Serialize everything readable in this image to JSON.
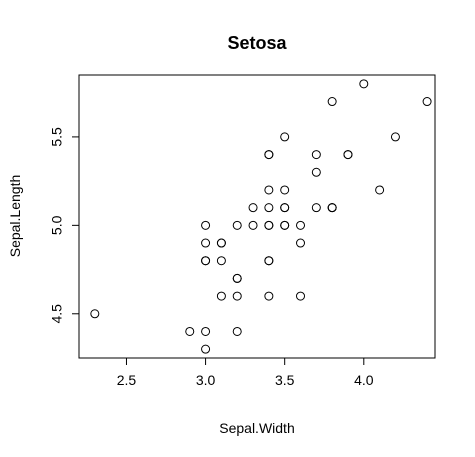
{
  "chart_data": {
    "type": "scatter",
    "title": "Setosa",
    "xlabel": "Sepal.Width",
    "ylabel": "Sepal.Length",
    "xlim": [
      2.2,
      4.45
    ],
    "ylim": [
      4.25,
      5.85
    ],
    "xticks": [
      2.5,
      3.0,
      3.5,
      4.0
    ],
    "xtick_labels": [
      "2.5",
      "3.0",
      "3.5",
      "4.0"
    ],
    "yticks": [
      4.5,
      5.0,
      5.5
    ],
    "ytick_labels": [
      "4.5",
      "5.0",
      "5.5"
    ],
    "grid": false,
    "legend": "none",
    "points": [
      {
        "x": 3.5,
        "y": 5.1
      },
      {
        "x": 3.0,
        "y": 4.9
      },
      {
        "x": 3.2,
        "y": 4.7
      },
      {
        "x": 3.1,
        "y": 4.6
      },
      {
        "x": 3.6,
        "y": 5.0
      },
      {
        "x": 3.9,
        "y": 5.4
      },
      {
        "x": 3.4,
        "y": 4.6
      },
      {
        "x": 3.4,
        "y": 5.0
      },
      {
        "x": 2.9,
        "y": 4.4
      },
      {
        "x": 3.1,
        "y": 4.9
      },
      {
        "x": 3.7,
        "y": 5.4
      },
      {
        "x": 3.4,
        "y": 4.8
      },
      {
        "x": 3.0,
        "y": 4.8
      },
      {
        "x": 3.0,
        "y": 4.3
      },
      {
        "x": 4.0,
        "y": 5.8
      },
      {
        "x": 4.4,
        "y": 5.7
      },
      {
        "x": 3.9,
        "y": 5.4
      },
      {
        "x": 3.5,
        "y": 5.1
      },
      {
        "x": 3.8,
        "y": 5.7
      },
      {
        "x": 3.8,
        "y": 5.1
      },
      {
        "x": 3.4,
        "y": 5.4
      },
      {
        "x": 3.7,
        "y": 5.1
      },
      {
        "x": 3.6,
        "y": 4.6
      },
      {
        "x": 3.3,
        "y": 5.1
      },
      {
        "x": 3.4,
        "y": 4.8
      },
      {
        "x": 3.0,
        "y": 5.0
      },
      {
        "x": 3.4,
        "y": 5.0
      },
      {
        "x": 3.5,
        "y": 5.2
      },
      {
        "x": 3.4,
        "y": 5.2
      },
      {
        "x": 3.2,
        "y": 4.7
      },
      {
        "x": 3.1,
        "y": 4.8
      },
      {
        "x": 3.4,
        "y": 5.4
      },
      {
        "x": 4.1,
        "y": 5.2
      },
      {
        "x": 4.2,
        "y": 5.5
      },
      {
        "x": 3.1,
        "y": 4.9
      },
      {
        "x": 3.2,
        "y": 5.0
      },
      {
        "x": 3.5,
        "y": 5.5
      },
      {
        "x": 3.6,
        "y": 4.9
      },
      {
        "x": 3.0,
        "y": 4.4
      },
      {
        "x": 3.4,
        "y": 5.1
      },
      {
        "x": 3.5,
        "y": 5.0
      },
      {
        "x": 2.3,
        "y": 4.5
      },
      {
        "x": 3.2,
        "y": 4.4
      },
      {
        "x": 3.5,
        "y": 5.0
      },
      {
        "x": 3.8,
        "y": 5.1
      },
      {
        "x": 3.0,
        "y": 4.8
      },
      {
        "x": 3.8,
        "y": 5.1
      },
      {
        "x": 3.2,
        "y": 4.6
      },
      {
        "x": 3.7,
        "y": 5.3
      },
      {
        "x": 3.3,
        "y": 5.0
      }
    ]
  }
}
